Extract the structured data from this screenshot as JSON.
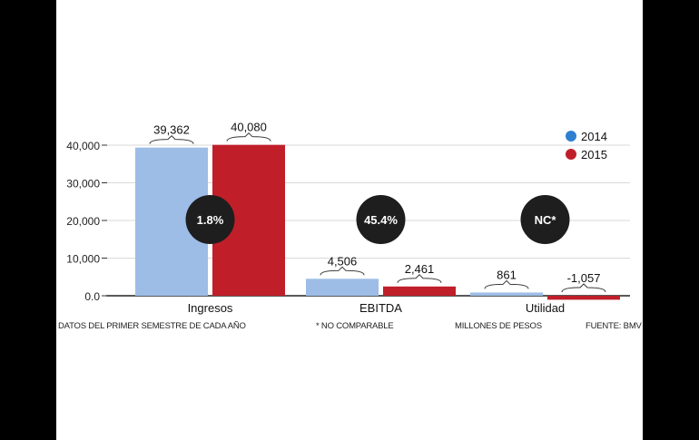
{
  "colors": {
    "c2014": "#9dbde6",
    "c2015": "#c01f2a",
    "badge": "#1e1e1e",
    "grid": "#d9d9d9"
  },
  "chart_data": {
    "type": "bar",
    "categories": [
      "Ingresos",
      "EBITDA",
      "Utilidad"
    ],
    "series": [
      {
        "name": "2014",
        "values": [
          39362,
          4506,
          861
        ]
      },
      {
        "name": "2015",
        "values": [
          40080,
          2461,
          -1057
        ]
      }
    ],
    "data_labels": {
      "2014": [
        "39,362",
        "4,506",
        "861"
      ],
      "2015": [
        "40,080",
        "2,461",
        "-1,057"
      ]
    },
    "change_badges": [
      "1.8%",
      "45.4%",
      "NC*"
    ],
    "yticks": [
      0,
      10000,
      20000,
      30000,
      40000
    ],
    "ytick_labels": [
      "0.0",
      "10,000",
      "20,000",
      "30,000",
      "40,000"
    ],
    "ylim": [
      -1500,
      40500
    ],
    "grid": true,
    "legend_position": "top-right",
    "title": "",
    "xlabel": "",
    "ylabel": ""
  },
  "footer": {
    "note1": "DATOS DEL PRIMER SEMESTRE DE CADA AÑO",
    "note2": "* NO COMPARABLE",
    "note3": "MILLONES DE PESOS",
    "note4": "FUENTE: BMV"
  }
}
